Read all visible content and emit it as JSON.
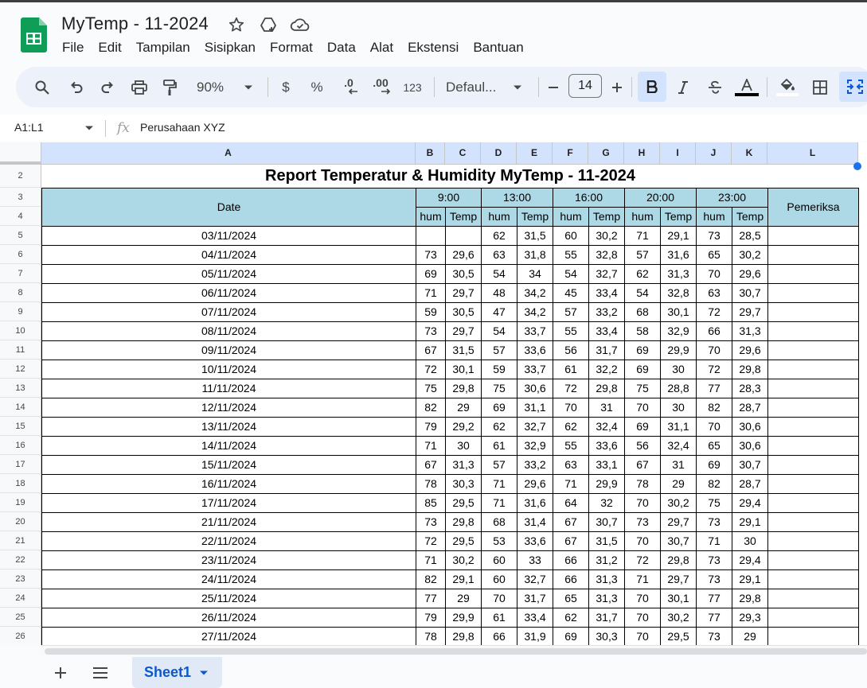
{
  "app": {
    "title": "MyTemp - 11-2024",
    "menu": [
      "File",
      "Edit",
      "Tampilan",
      "Sisipkan",
      "Format",
      "Data",
      "Alat",
      "Ekstensi",
      "Bantuan"
    ]
  },
  "toolbar": {
    "zoom": "90%",
    "currency": "$",
    "percent": "%",
    "decrease_decimal": ".0",
    "increase_decimal": ".00",
    "number_format": "123",
    "font": "Defaul...",
    "font_size": "14",
    "colors": {
      "accent": "#0b57d0",
      "toolbar_bg": "#edf2fa",
      "header_fill": "#add8e6",
      "selected_col": "#d3e3fd"
    }
  },
  "formula_bar": {
    "range": "A1:L1",
    "fx": "fx",
    "value": "Perusahaan XYZ"
  },
  "grid": {
    "columns": [
      "A",
      "B",
      "C",
      "D",
      "E",
      "F",
      "G",
      "H",
      "I",
      "J",
      "K",
      "L"
    ],
    "row_numbers": [
      "2",
      "3",
      "4",
      "5",
      "6",
      "7",
      "8",
      "9",
      "10",
      "11",
      "12",
      "13",
      "14",
      "15",
      "16",
      "17",
      "18",
      "19",
      "20",
      "21",
      "22",
      "23",
      "24",
      "25",
      "26"
    ],
    "report_title": "Report Temperatur & Humidity MyTemp - 11-2024",
    "date_header": "Date",
    "checker_header": "Pemeriksa",
    "times": [
      "9:00",
      "13:00",
      "16:00",
      "20:00",
      "23:00"
    ],
    "sub_headers": [
      "hum",
      "Temp",
      "hum",
      "Temp",
      "hum",
      "Temp",
      "hum",
      "Temp",
      "hum",
      "Temp"
    ],
    "rows": [
      {
        "date": "03/11/2024",
        "values": [
          "",
          "",
          "62",
          "31,5",
          "60",
          "30,2",
          "71",
          "29,1",
          "73",
          "28,5"
        ],
        "checker": ""
      },
      {
        "date": "04/11/2024",
        "values": [
          "73",
          "29,6",
          "63",
          "31,8",
          "55",
          "32,8",
          "57",
          "31,6",
          "65",
          "30,2"
        ],
        "checker": ""
      },
      {
        "date": "05/11/2024",
        "values": [
          "69",
          "30,5",
          "54",
          "34",
          "54",
          "32,7",
          "62",
          "31,3",
          "70",
          "29,6"
        ],
        "checker": ""
      },
      {
        "date": "06/11/2024",
        "values": [
          "71",
          "29,7",
          "48",
          "34,2",
          "45",
          "33,4",
          "54",
          "32,8",
          "63",
          "30,7"
        ],
        "checker": ""
      },
      {
        "date": "07/11/2024",
        "values": [
          "59",
          "30,5",
          "47",
          "34,2",
          "57",
          "33,2",
          "68",
          "30,1",
          "72",
          "29,7"
        ],
        "checker": ""
      },
      {
        "date": "08/11/2024",
        "values": [
          "73",
          "29,7",
          "54",
          "33,7",
          "55",
          "33,4",
          "58",
          "32,9",
          "66",
          "31,3"
        ],
        "checker": ""
      },
      {
        "date": "09/11/2024",
        "values": [
          "67",
          "31,5",
          "57",
          "33,6",
          "56",
          "31,7",
          "69",
          "29,9",
          "70",
          "29,6"
        ],
        "checker": ""
      },
      {
        "date": "10/11/2024",
        "values": [
          "72",
          "30,1",
          "59",
          "33,7",
          "61",
          "32,2",
          "69",
          "30",
          "72",
          "29,8"
        ],
        "checker": ""
      },
      {
        "date": "11/11/2024",
        "values": [
          "75",
          "29,8",
          "75",
          "30,6",
          "72",
          "29,8",
          "75",
          "28,8",
          "77",
          "28,3"
        ],
        "checker": ""
      },
      {
        "date": "12/11/2024",
        "values": [
          "82",
          "29",
          "69",
          "31,1",
          "70",
          "31",
          "70",
          "30",
          "82",
          "28,7"
        ],
        "checker": ""
      },
      {
        "date": "13/11/2024",
        "values": [
          "79",
          "29,2",
          "62",
          "32,7",
          "62",
          "32,4",
          "69",
          "31,1",
          "70",
          "30,6"
        ],
        "checker": ""
      },
      {
        "date": "14/11/2024",
        "values": [
          "71",
          "30",
          "61",
          "32,9",
          "55",
          "33,6",
          "56",
          "32,4",
          "65",
          "30,6"
        ],
        "checker": ""
      },
      {
        "date": "15/11/2024",
        "values": [
          "67",
          "31,3",
          "57",
          "33,2",
          "63",
          "33,1",
          "67",
          "31",
          "69",
          "30,7"
        ],
        "checker": ""
      },
      {
        "date": "16/11/2024",
        "values": [
          "78",
          "30,3",
          "71",
          "29,6",
          "71",
          "29,9",
          "78",
          "29",
          "82",
          "28,7"
        ],
        "checker": ""
      },
      {
        "date": "17/11/2024",
        "values": [
          "85",
          "29,5",
          "71",
          "31,6",
          "64",
          "32",
          "70",
          "30,2",
          "75",
          "29,4"
        ],
        "checker": ""
      },
      {
        "date": "21/11/2024",
        "values": [
          "73",
          "29,8",
          "68",
          "31,4",
          "67",
          "30,7",
          "73",
          "29,7",
          "73",
          "29,1"
        ],
        "checker": ""
      },
      {
        "date": "22/11/2024",
        "values": [
          "72",
          "29,5",
          "53",
          "33,6",
          "67",
          "31,5",
          "70",
          "30,7",
          "71",
          "30"
        ],
        "checker": ""
      },
      {
        "date": "23/11/2024",
        "values": [
          "71",
          "30,2",
          "60",
          "33",
          "66",
          "31,2",
          "72",
          "29,8",
          "73",
          "29,4"
        ],
        "checker": ""
      },
      {
        "date": "24/11/2024",
        "values": [
          "82",
          "29,1",
          "60",
          "32,7",
          "66",
          "31,3",
          "71",
          "29,7",
          "73",
          "29,1"
        ],
        "checker": ""
      },
      {
        "date": "25/11/2024",
        "values": [
          "77",
          "29",
          "70",
          "31,7",
          "65",
          "31,3",
          "70",
          "30,1",
          "77",
          "29,8"
        ],
        "checker": ""
      },
      {
        "date": "26/11/2024",
        "values": [
          "79",
          "29,9",
          "61",
          "33,4",
          "62",
          "31,7",
          "70",
          "30,2",
          "77",
          "29,3"
        ],
        "checker": ""
      },
      {
        "date": "27/11/2024",
        "values": [
          "78",
          "29,8",
          "66",
          "31,9",
          "69",
          "30,3",
          "70",
          "29,5",
          "73",
          "29"
        ],
        "checker": ""
      }
    ]
  },
  "sheets": {
    "tabs": [
      "Sheet1"
    ]
  }
}
